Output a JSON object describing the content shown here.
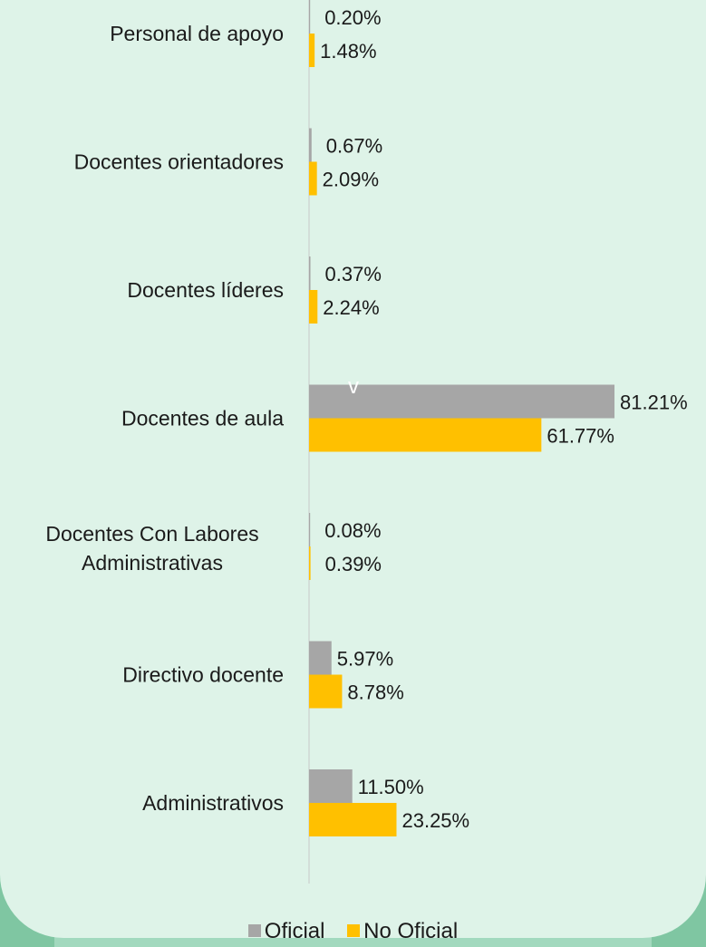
{
  "chart_data": {
    "type": "bar",
    "orientation": "horizontal",
    "categories": [
      "Personal de apoyo",
      "Docentes orientadores",
      "Docentes líderes",
      "Docentes de aula",
      "Docentes Con Labores Administrativas",
      "Directivo docente",
      "Administrativos"
    ],
    "series": [
      {
        "name": "Oficial",
        "color": "#a6a6a6",
        "values": [
          0.2,
          0.67,
          0.37,
          81.21,
          0.08,
          5.97,
          11.5
        ],
        "labels": [
          "0.20%",
          "0.67%",
          "0.37%",
          "81.21%",
          "0.08%",
          "5.97%",
          "11.50%"
        ]
      },
      {
        "name": "No Oficial",
        "color": "#ffc000",
        "values": [
          1.48,
          2.09,
          2.24,
          61.77,
          0.39,
          8.78,
          23.25
        ],
        "labels": [
          "1.48%",
          "2.09%",
          "2.24%",
          "61.77%",
          "0.39%",
          "8.78%",
          "23.25%"
        ]
      }
    ],
    "annotation": "v",
    "legend_position": "bottom",
    "grid": false
  }
}
